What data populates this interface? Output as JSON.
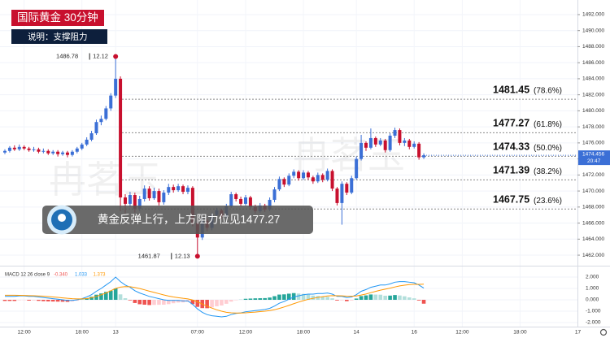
{
  "chart_data": {
    "type": "candlestick",
    "title": "国际黄金 30分钟",
    "subtitle": "说明：支撑阻力",
    "banner": "黄金反弹上行，上方阻力位见1477.27",
    "watermark": "冉茗玉",
    "countdown": "20:47",
    "up_color": "#3b6fd6",
    "down_color": "#c8102e",
    "grid": true,
    "categories": [
      null,
      null,
      null,
      null,
      "12:00",
      null,
      null,
      null,
      null,
      null,
      null,
      null,
      null,
      null,
      null,
      null,
      "18:00",
      null,
      null,
      null,
      null,
      null,
      null,
      "13",
      null,
      null,
      null,
      null,
      null,
      null,
      null,
      null,
      null,
      null,
      null,
      null,
      null,
      null,
      null,
      null,
      "07:00",
      null,
      null,
      null,
      null,
      null,
      null,
      null,
      null,
      null,
      "12:00",
      null,
      null,
      null,
      null,
      null,
      null,
      null,
      null,
      null,
      null,
      null,
      "18:00",
      null,
      null,
      null,
      null,
      null,
      null,
      null,
      null,
      null,
      null,
      "14",
      null,
      null,
      null,
      null,
      null,
      null,
      null,
      null,
      null,
      null,
      null,
      "16",
      null,
      null,
      null,
      null,
      null,
      null,
      null,
      null,
      null,
      "12:00",
      null,
      null,
      null,
      null,
      null,
      null,
      null,
      null,
      null,
      null,
      null,
      "18:00",
      null,
      null,
      null,
      null,
      null,
      null,
      null,
      null,
      null,
      null,
      null,
      "17"
    ],
    "ohlc": [
      [
        1474.8,
        1475.2,
        1474.6,
        1475.0
      ],
      [
        1475.0,
        1475.6,
        1474.8,
        1475.4
      ],
      [
        1475.4,
        1475.7,
        1475.0,
        1475.2
      ],
      [
        1475.2,
        1475.8,
        1475.0,
        1475.5
      ],
      [
        1475.5,
        1475.7,
        1475.1,
        1475.3
      ],
      [
        1475.3,
        1475.5,
        1474.9,
        1475.1
      ],
      [
        1475.1,
        1475.5,
        1474.9,
        1475.2
      ],
      [
        1475.2,
        1475.4,
        1474.7,
        1474.9
      ],
      [
        1474.9,
        1475.3,
        1474.7,
        1475.0
      ],
      [
        1475.0,
        1475.2,
        1474.5,
        1474.7
      ],
      [
        1474.7,
        1475.1,
        1474.5,
        1474.9
      ],
      [
        1474.9,
        1475.1,
        1474.3,
        1474.6
      ],
      [
        1474.6,
        1475.0,
        1474.4,
        1474.8
      ],
      [
        1474.8,
        1475.0,
        1474.2,
        1474.5
      ],
      [
        1474.5,
        1475.1,
        1474.3,
        1474.9
      ],
      [
        1474.9,
        1475.5,
        1474.7,
        1475.3
      ],
      [
        1475.3,
        1476.0,
        1475.1,
        1475.8
      ],
      [
        1475.8,
        1476.7,
        1475.6,
        1476.4
      ],
      [
        1476.4,
        1477.5,
        1476.2,
        1477.2
      ],
      [
        1477.2,
        1478.9,
        1477.0,
        1478.6
      ],
      [
        1478.6,
        1479.4,
        1478.2,
        1479.0
      ],
      [
        1479.0,
        1480.6,
        1478.8,
        1480.3
      ],
      [
        1480.3,
        1482.2,
        1480.0,
        1481.9
      ],
      [
        1481.9,
        1486.78,
        1481.6,
        1484.0
      ],
      [
        1484.0,
        1484.3,
        1467.5,
        1469.2
      ],
      [
        1469.2,
        1469.6,
        1467.2,
        1468.4
      ],
      [
        1468.4,
        1469.9,
        1468.0,
        1469.5
      ],
      [
        1469.5,
        1469.8,
        1467.3,
        1467.8
      ],
      [
        1467.8,
        1469.4,
        1467.5,
        1469.0
      ],
      [
        1469.0,
        1470.7,
        1468.7,
        1470.3
      ],
      [
        1470.3,
        1470.6,
        1468.8,
        1469.1
      ],
      [
        1469.1,
        1470.4,
        1468.9,
        1470.0
      ],
      [
        1470.0,
        1470.3,
        1468.2,
        1468.6
      ],
      [
        1468.6,
        1470.1,
        1468.3,
        1469.8
      ],
      [
        1469.8,
        1470.9,
        1469.5,
        1470.5
      ],
      [
        1470.5,
        1470.8,
        1469.8,
        1470.1
      ],
      [
        1470.1,
        1470.9,
        1469.9,
        1470.6
      ],
      [
        1470.6,
        1470.8,
        1469.6,
        1469.9
      ],
      [
        1469.9,
        1470.7,
        1469.6,
        1470.4
      ],
      [
        1470.4,
        1470.6,
        1465.6,
        1466.0
      ],
      [
        1466.0,
        1466.4,
        1461.87,
        1464.2
      ],
      [
        1464.2,
        1466.7,
        1463.9,
        1466.3
      ],
      [
        1466.3,
        1466.6,
        1465.0,
        1465.4
      ],
      [
        1465.4,
        1467.3,
        1465.1,
        1467.0
      ],
      [
        1467.0,
        1467.9,
        1466.7,
        1467.6
      ],
      [
        1467.6,
        1467.8,
        1466.5,
        1466.8
      ],
      [
        1466.8,
        1468.4,
        1466.6,
        1468.1
      ],
      [
        1468.1,
        1469.9,
        1467.9,
        1469.6
      ],
      [
        1469.6,
        1469.8,
        1468.7,
        1469.0
      ],
      [
        1469.0,
        1469.3,
        1468.1,
        1468.4
      ],
      [
        1468.4,
        1469.5,
        1468.2,
        1469.2
      ],
      [
        1469.2,
        1469.4,
        1467.7,
        1468.0
      ],
      [
        1468.0,
        1468.3,
        1467.2,
        1467.5
      ],
      [
        1467.5,
        1468.5,
        1467.3,
        1468.2
      ],
      [
        1468.2,
        1468.4,
        1467.4,
        1467.7
      ],
      [
        1467.7,
        1469.2,
        1467.5,
        1468.9
      ],
      [
        1468.9,
        1470.5,
        1468.6,
        1470.2
      ],
      [
        1470.2,
        1471.8,
        1470.0,
        1471.5
      ],
      [
        1471.5,
        1471.7,
        1470.5,
        1470.8
      ],
      [
        1470.8,
        1472.2,
        1470.6,
        1471.9
      ],
      [
        1471.9,
        1472.7,
        1471.6,
        1472.4
      ],
      [
        1472.4,
        1472.6,
        1471.3,
        1471.6
      ],
      [
        1471.6,
        1472.6,
        1471.4,
        1472.3
      ],
      [
        1472.3,
        1472.5,
        1471.4,
        1471.7
      ],
      [
        1471.7,
        1471.9,
        1470.9,
        1471.2
      ],
      [
        1471.2,
        1472.3,
        1471.0,
        1472.0
      ],
      [
        1472.0,
        1472.2,
        1471.1,
        1471.4
      ],
      [
        1471.4,
        1472.8,
        1471.2,
        1472.5
      ],
      [
        1472.5,
        1472.7,
        1470.0,
        1470.3
      ],
      [
        1470.3,
        1470.5,
        1468.2,
        1468.5
      ],
      [
        1468.5,
        1471.2,
        1465.8,
        1470.9
      ],
      [
        1470.9,
        1471.1,
        1469.5,
        1469.8
      ],
      [
        1469.8,
        1471.9,
        1469.6,
        1471.6
      ],
      [
        1471.6,
        1474.3,
        1471.4,
        1474.0
      ],
      [
        1474.0,
        1477.0,
        1473.8,
        1476.0
      ],
      [
        1476.0,
        1476.2,
        1475.0,
        1475.4
      ],
      [
        1475.4,
        1477.8,
        1475.2,
        1476.6
      ],
      [
        1476.6,
        1476.8,
        1475.5,
        1475.8
      ],
      [
        1475.8,
        1476.6,
        1475.6,
        1476.3
      ],
      [
        1476.3,
        1476.5,
        1474.8,
        1475.1
      ],
      [
        1475.1,
        1477.2,
        1474.9,
        1476.9
      ],
      [
        1476.9,
        1477.9,
        1476.6,
        1477.6
      ],
      [
        1477.6,
        1477.8,
        1475.7,
        1476.0
      ],
      [
        1476.0,
        1476.6,
        1475.6,
        1476.3
      ],
      [
        1476.3,
        1476.5,
        1475.2,
        1475.5
      ],
      [
        1475.5,
        1476.2,
        1475.3,
        1475.9
      ],
      [
        1475.9,
        1476.1,
        1473.9,
        1474.2
      ],
      [
        1474.2,
        1474.7,
        1474.0,
        1474.456
      ],
      null,
      null,
      null,
      null,
      null,
      null,
      null,
      null,
      null,
      null,
      null,
      null,
      null,
      null,
      null,
      null,
      null,
      null,
      null,
      null,
      null,
      null,
      null,
      null,
      null,
      null,
      null,
      null,
      null,
      null,
      null,
      null
    ],
    "ylim": [
      1460.89,
      1493.82
    ],
    "yticks": [
      {
        "value": 1462,
        "label": "1462.000"
      },
      {
        "value": 1464,
        "label": "1464.000"
      },
      {
        "value": 1466,
        "label": "1466.000"
      },
      {
        "value": 1468,
        "label": "1468.000"
      },
      {
        "value": 1470,
        "label": "1470.000"
      },
      {
        "value": 1472,
        "label": "1472.000"
      },
      {
        "value": 1474,
        "label": "1474.000"
      },
      {
        "value": 1476,
        "label": "1476.000"
      },
      {
        "value": 1478,
        "label": "1478.000"
      },
      {
        "value": 1480,
        "label": "1480.000"
      },
      {
        "value": 1482,
        "label": "1482.000"
      },
      {
        "value": 1484,
        "label": "1484.000"
      },
      {
        "value": 1486,
        "label": "1486.000"
      },
      {
        "value": 1488,
        "label": "1488.000"
      },
      {
        "value": 1490,
        "label": "1490.000"
      },
      {
        "value": 1492,
        "label": "1492.000"
      }
    ],
    "fib": [
      {
        "price": 1481.45,
        "label": "(78.6%)"
      },
      {
        "price": 1477.27,
        "label": "(61.8%)"
      },
      {
        "price": 1474.33,
        "label": "(50.0%)"
      },
      {
        "price": 1471.39,
        "label": "(38.2%)"
      },
      {
        "price": 1467.75,
        "label": "(23.6%)"
      }
    ],
    "annotations": [
      {
        "price": 1486.78,
        "date": "12.12",
        "edge": "high"
      },
      {
        "price": 1461.87,
        "date": "12.13",
        "edge": "low"
      }
    ],
    "macd": {
      "label": "MACD 12 26 close 9",
      "legend_values": [
        {
          "value": -0.34,
          "label": "-0.340",
          "color": "#ef5350"
        },
        {
          "value": 1.033,
          "label": "1.033",
          "color": "#2196f3"
        },
        {
          "value": 1.373,
          "label": "1.373",
          "color": "#ff9800"
        }
      ],
      "ylim": [
        -2.43,
        2.93
      ],
      "yticks": [
        {
          "value": 2,
          "label": "2.000"
        },
        {
          "value": 1,
          "label": "1.000"
        },
        {
          "value": 0,
          "label": "0.000"
        },
        {
          "value": -1,
          "label": "-1.000"
        },
        {
          "value": -2,
          "label": "-2.000"
        }
      ],
      "hist_colors": [
        "#26a69a",
        "#b2dfdb",
        "#ef5350",
        "#ffcdd2"
      ],
      "histogram": [
        -0.1,
        -0.1,
        -0.1,
        -0.04,
        -0.03,
        -0.07,
        -0.06,
        -0.09,
        -0.12,
        -0.14,
        -0.15,
        -0.16,
        -0.17,
        -0.18,
        -0.15,
        -0.08,
        0.02,
        0.14,
        0.27,
        0.45,
        0.56,
        0.7,
        0.8,
        1.0,
        0.48,
        0.14,
        -0.05,
        -0.28,
        -0.39,
        -0.43,
        -0.46,
        -0.45,
        -0.44,
        -0.43,
        -0.38,
        -0.3,
        -0.24,
        -0.23,
        -0.18,
        -0.38,
        -0.62,
        -0.73,
        -0.74,
        -0.67,
        -0.57,
        -0.5,
        -0.35,
        -0.16,
        -0.04,
        0.01,
        0.09,
        0.11,
        0.13,
        0.14,
        0.15,
        0.2,
        0.32,
        0.46,
        0.48,
        0.54,
        0.59,
        0.55,
        0.52,
        0.46,
        0.37,
        0.34,
        0.27,
        0.26,
        0.13,
        -0.06,
        -0.05,
        -0.12,
        -0.06,
        0.11,
        0.33,
        0.39,
        0.47,
        0.46,
        0.45,
        0.36,
        0.37,
        0.42,
        0.38,
        0.31,
        0.21,
        0.13,
        -0.06,
        -0.34,
        null,
        null,
        null,
        null,
        null,
        null,
        null,
        null,
        null,
        null,
        null,
        null,
        null,
        null,
        null,
        null,
        null,
        null,
        null,
        null,
        null,
        null,
        null,
        null,
        null,
        null,
        null,
        null,
        null,
        null,
        null,
        null
      ],
      "series": [
        {
          "name": "MACD",
          "color": "#2196f3",
          "values": [
            0.3,
            0.3,
            0.3,
            0.35,
            0.35,
            0.3,
            0.3,
            0.25,
            0.2,
            0.15,
            0.1,
            0.05,
            0.0,
            -0.05,
            -0.05,
            0.0,
            0.1,
            0.25,
            0.45,
            0.75,
            1.0,
            1.3,
            1.6,
            2.0,
            1.6,
            1.3,
            1.1,
            0.8,
            0.6,
            0.45,
            0.3,
            0.2,
            0.1,
            0.0,
            -0.05,
            -0.05,
            -0.05,
            -0.1,
            -0.1,
            -0.4,
            -0.8,
            -1.1,
            -1.3,
            -1.4,
            -1.45,
            -1.5,
            -1.45,
            -1.3,
            -1.2,
            -1.15,
            -1.05,
            -1.0,
            -0.95,
            -0.9,
            -0.85,
            -0.75,
            -0.55,
            -0.3,
            -0.15,
            0.05,
            0.25,
            0.35,
            0.45,
            0.5,
            0.5,
            0.55,
            0.55,
            0.6,
            0.5,
            0.3,
            0.3,
            0.2,
            0.25,
            0.45,
            0.75,
            0.9,
            1.1,
            1.2,
            1.3,
            1.3,
            1.4,
            1.55,
            1.6,
            1.6,
            1.55,
            1.5,
            1.3,
            1.033,
            null,
            null,
            null,
            null,
            null,
            null,
            null,
            null,
            null,
            null,
            null,
            null,
            null,
            null,
            null,
            null,
            null,
            null,
            null,
            null,
            null,
            null,
            null,
            null,
            null,
            null,
            null,
            null,
            null,
            null,
            null,
            null
          ]
        },
        {
          "name": "Signal",
          "color": "#ff9800",
          "values": [
            0.4,
            0.4,
            0.4,
            0.39,
            0.38,
            0.37,
            0.36,
            0.34,
            0.32,
            0.29,
            0.25,
            0.21,
            0.17,
            0.13,
            0.1,
            0.08,
            0.08,
            0.11,
            0.18,
            0.3,
            0.44,
            0.6,
            0.8,
            1.0,
            1.12,
            1.16,
            1.15,
            1.08,
            0.99,
            0.88,
            0.76,
            0.65,
            0.54,
            0.43,
            0.33,
            0.25,
            0.19,
            0.13,
            0.08,
            -0.02,
            -0.18,
            -0.37,
            -0.56,
            -0.73,
            -0.88,
            -1.0,
            -1.1,
            -1.14,
            -1.16,
            -1.16,
            -1.14,
            -1.11,
            -1.08,
            -1.04,
            -1.0,
            -0.95,
            -0.87,
            -0.76,
            -0.63,
            -0.49,
            -0.34,
            -0.2,
            -0.07,
            0.04,
            0.13,
            0.21,
            0.28,
            0.34,
            0.37,
            0.36,
            0.35,
            0.32,
            0.31,
            0.34,
            0.42,
            0.51,
            0.63,
            0.74,
            0.85,
            0.94,
            1.03,
            1.13,
            1.22,
            1.29,
            1.34,
            1.37,
            1.36,
            1.373,
            null,
            null,
            null,
            null,
            null,
            null,
            null,
            null,
            null,
            null,
            null,
            null,
            null,
            null,
            null,
            null,
            null,
            null,
            null,
            null,
            null,
            null,
            null,
            null,
            null,
            null,
            null,
            null,
            null,
            null,
            null,
            null
          ]
        }
      ]
    }
  }
}
